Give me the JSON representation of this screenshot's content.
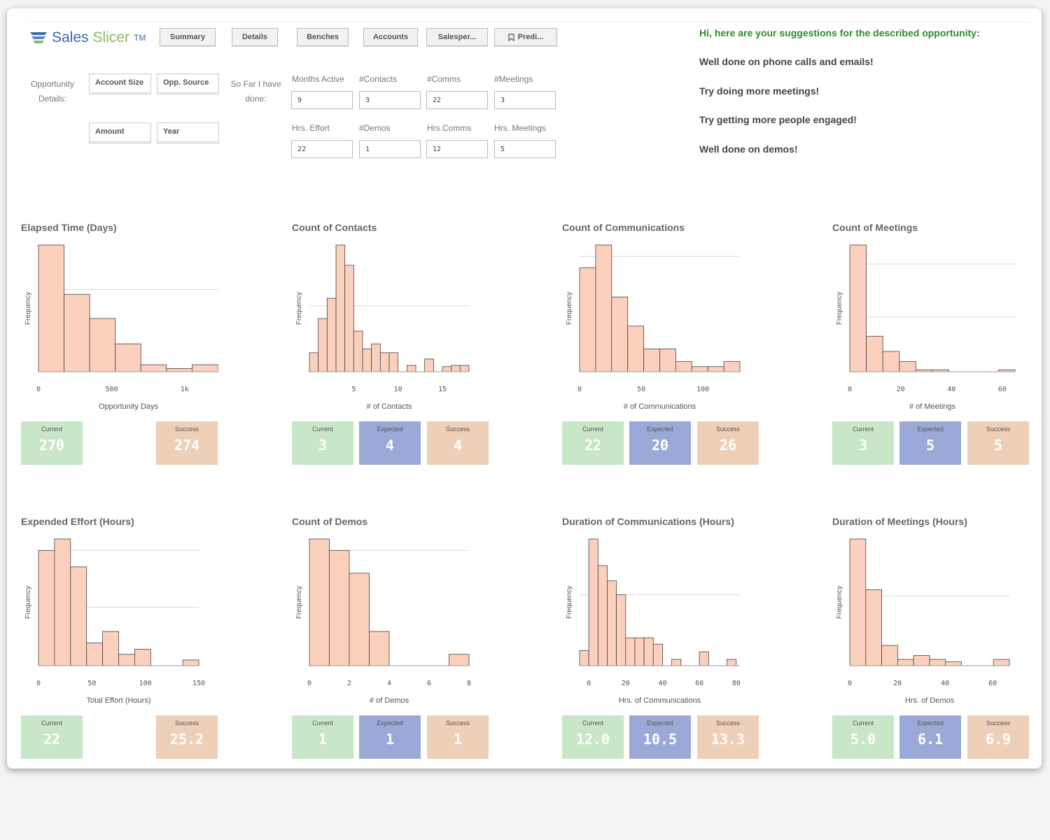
{
  "app": {
    "name_part1": "Sales",
    "name_part2": "Slicer",
    "tm": "TM"
  },
  "tabs": [
    "Summary",
    "Details",
    "Benches",
    "Accounts",
    "Salesper...",
    "Predi..."
  ],
  "opportunity": {
    "label_line1": "Opportunity",
    "label_line2": "Details:",
    "fields": [
      "Account Size",
      "Opp. Source",
      "Amount",
      "Year"
    ]
  },
  "done": {
    "label_line1": "So Far I have",
    "label_line2": "done:",
    "inputs": [
      {
        "label": "Months Active",
        "value": "9"
      },
      {
        "label": "#Contacts",
        "value": "3"
      },
      {
        "label": "#Comms",
        "value": "22"
      },
      {
        "label": "#Meetings",
        "value": "3"
      },
      {
        "label": "Hrs. Effort",
        "value": "22"
      },
      {
        "label": "#Demos",
        "value": "1"
      },
      {
        "label": "Hrs.Comms",
        "value": "12"
      },
      {
        "label": "Hrs. Meetings",
        "value": "5"
      }
    ]
  },
  "suggestions": {
    "title": "Hi, here are your suggestions for the described opportunity:",
    "items": [
      "Well done on phone calls and emails!",
      "Try doing more meetings!",
      "Try getting more people engaged!",
      "Well done on demos!"
    ]
  },
  "colors": {
    "bar": "#fbd1bd",
    "bar_stroke": "#444444",
    "current": "#c8e6c8",
    "expected": "#9ba9d8",
    "success": "#eecfb8"
  },
  "icons": {
    "logo": "stacked-layers-icon",
    "bookmark": "bookmark-icon"
  },
  "chart_data": [
    {
      "type": "bar",
      "title": "Elapsed Time (Days)",
      "ylabel": "Frequency",
      "xlabel": "Opportunity Days",
      "xlim": [
        0,
        1230
      ],
      "ylim": [
        0,
        1.0
      ],
      "xticks": [
        {
          "v": 0,
          "t": "0"
        },
        {
          "v": 500,
          "t": "500"
        },
        {
          "v": 1000,
          "t": "1k"
        }
      ],
      "grid": [
        0.65
      ],
      "bins": [
        [
          0,
          175,
          1.0
        ],
        [
          175,
          350,
          0.61
        ],
        [
          350,
          525,
          0.42
        ],
        [
          525,
          700,
          0.22
        ],
        [
          700,
          875,
          0.055
        ],
        [
          875,
          1050,
          0.025
        ],
        [
          1050,
          1230,
          0.055
        ]
      ],
      "kpis": [
        {
          "kind": "Current",
          "value": "270"
        },
        {
          "kind": "Success",
          "value": "274"
        }
      ]
    },
    {
      "type": "bar",
      "title": "Count of Contacts",
      "ylabel": "Frequency",
      "xlabel": "# of Contacts",
      "xlim": [
        0,
        18
      ],
      "ylim": [
        0,
        1.0
      ],
      "xticks": [
        {
          "v": 5,
          "t": "5"
        },
        {
          "v": 10,
          "t": "10"
        },
        {
          "v": 15,
          "t": "15"
        }
      ],
      "grid": [
        0.52
      ],
      "bins": [
        [
          0,
          1,
          0.15
        ],
        [
          1,
          2,
          0.42
        ],
        [
          2,
          3,
          0.58
        ],
        [
          3,
          4,
          1.0
        ],
        [
          4,
          5,
          0.84
        ],
        [
          5,
          6,
          0.32
        ],
        [
          6,
          7,
          0.18
        ],
        [
          7,
          8,
          0.22
        ],
        [
          8,
          9,
          0.15
        ],
        [
          9,
          10,
          0.15
        ],
        [
          11,
          12,
          0.05
        ],
        [
          13,
          14,
          0.1
        ],
        [
          15,
          16,
          0.04
        ],
        [
          16,
          17,
          0.05
        ],
        [
          17,
          18,
          0.05
        ]
      ],
      "kpis": [
        {
          "kind": "Current",
          "value": "3"
        },
        {
          "kind": "Expected",
          "value": "4"
        },
        {
          "kind": "Success",
          "value": "4"
        }
      ]
    },
    {
      "type": "bar",
      "title": "Count of Communications",
      "ylabel": "Frequency",
      "xlabel": "# of Communications",
      "xlim": [
        0,
        130
      ],
      "ylim": [
        0,
        1.0
      ],
      "xticks": [
        {
          "v": 0,
          "t": "0"
        },
        {
          "v": 50,
          "t": "50"
        },
        {
          "v": 100,
          "t": "100"
        }
      ],
      "grid": [
        0.91
      ],
      "bins": [
        [
          0,
          13,
          0.82
        ],
        [
          13,
          26,
          1.0
        ],
        [
          26,
          39,
          0.59
        ],
        [
          39,
          52,
          0.36
        ],
        [
          52,
          65,
          0.18
        ],
        [
          65,
          78,
          0.18
        ],
        [
          78,
          91,
          0.08
        ],
        [
          91,
          104,
          0.04
        ],
        [
          104,
          117,
          0.04
        ],
        [
          117,
          130,
          0.08
        ]
      ],
      "kpis": [
        {
          "kind": "Current",
          "value": "22"
        },
        {
          "kind": "Expected",
          "value": "20"
        },
        {
          "kind": "Success",
          "value": "26"
        }
      ]
    },
    {
      "type": "bar",
      "title": "Count of Meetings",
      "ylabel": "Frequency",
      "xlabel": "# of Meetings",
      "xlim": [
        0,
        65
      ],
      "ylim": [
        0,
        1.0
      ],
      "xticks": [
        {
          "v": 0,
          "t": "0"
        },
        {
          "v": 20,
          "t": "20"
        },
        {
          "v": 40,
          "t": "40"
        },
        {
          "v": 60,
          "t": "60"
        }
      ],
      "grid": [
        0.85,
        0.43
      ],
      "bins": [
        [
          0,
          6.5,
          1.0
        ],
        [
          6.5,
          13,
          0.28
        ],
        [
          13,
          19.5,
          0.16
        ],
        [
          19.5,
          26,
          0.08
        ],
        [
          26,
          32.5,
          0.015
        ],
        [
          32.5,
          39,
          0.015
        ],
        [
          58.5,
          65,
          0.015
        ]
      ],
      "kpis": [
        {
          "kind": "Current",
          "value": "3"
        },
        {
          "kind": "Expected",
          "value": "5"
        },
        {
          "kind": "Success",
          "value": "5"
        }
      ]
    },
    {
      "type": "bar",
      "title": "Expended Effort (Hours)",
      "ylabel": "Frequency",
      "xlabel": "Total Effort (Hours)",
      "xlim": [
        0,
        150
      ],
      "ylim": [
        0,
        1.0
      ],
      "xticks": [
        {
          "v": 0,
          "t": "0"
        },
        {
          "v": 50,
          "t": "50"
        },
        {
          "v": 100,
          "t": "100"
        },
        {
          "v": 150,
          "t": "150"
        }
      ],
      "grid": [
        0.91,
        0.46
      ],
      "bins": [
        [
          0,
          15,
          0.91
        ],
        [
          15,
          30,
          1.0
        ],
        [
          30,
          45,
          0.78
        ],
        [
          45,
          60,
          0.18
        ],
        [
          60,
          75,
          0.27
        ],
        [
          75,
          90,
          0.09
        ],
        [
          90,
          105,
          0.13
        ],
        [
          135,
          150,
          0.045
        ]
      ],
      "kpis": [
        {
          "kind": "Current",
          "value": "22"
        },
        {
          "kind": "Success",
          "value": "25.2"
        }
      ]
    },
    {
      "type": "bar",
      "title": "Count of Demos",
      "ylabel": "Frequency",
      "xlabel": "# of Demos",
      "xlim": [
        0,
        8
      ],
      "ylim": [
        0,
        1.0
      ],
      "xticks": [
        {
          "v": 0,
          "t": "0"
        },
        {
          "v": 2,
          "t": "2"
        },
        {
          "v": 4,
          "t": "4"
        },
        {
          "v": 6,
          "t": "6"
        },
        {
          "v": 8,
          "t": "8"
        }
      ],
      "grid": [
        0.91
      ],
      "bins": [
        [
          0,
          1,
          1.0
        ],
        [
          1,
          2,
          0.91
        ],
        [
          2,
          3,
          0.73
        ],
        [
          3,
          4,
          0.27
        ],
        [
          7,
          8,
          0.09
        ]
      ],
      "kpis": [
        {
          "kind": "Current",
          "value": "1"
        },
        {
          "kind": "Expected",
          "value": "1"
        },
        {
          "kind": "Success",
          "value": "1"
        }
      ]
    },
    {
      "type": "bar",
      "title": "Duration of Communications (Hours)",
      "ylabel": "Frequency",
      "xlabel": "Hrs. of Communications",
      "xlim": [
        -5,
        82
      ],
      "ylim": [
        0,
        1.0
      ],
      "xticks": [
        {
          "v": 0,
          "t": "0"
        },
        {
          "v": 20,
          "t": "20"
        },
        {
          "v": 40,
          "t": "40"
        },
        {
          "v": 60,
          "t": "60"
        },
        {
          "v": 80,
          "t": "80"
        }
      ],
      "grid": [
        0.56
      ],
      "bins": [
        [
          -5,
          0,
          0.12
        ],
        [
          0,
          5,
          1.0
        ],
        [
          5,
          10,
          0.79
        ],
        [
          10,
          15,
          0.67
        ],
        [
          15,
          20,
          0.56
        ],
        [
          20,
          25,
          0.22
        ],
        [
          25,
          30,
          0.22
        ],
        [
          30,
          35,
          0.22
        ],
        [
          35,
          40,
          0.17
        ],
        [
          45,
          50,
          0.05
        ],
        [
          60,
          65,
          0.11
        ],
        [
          75,
          80,
          0.05
        ]
      ],
      "kpis": [
        {
          "kind": "Current",
          "value": "12.0"
        },
        {
          "kind": "Expected",
          "value": "10.5"
        },
        {
          "kind": "Success",
          "value": "13.3"
        }
      ]
    },
    {
      "type": "bar",
      "title": "Duration of Meetings (Hours)",
      "ylabel": "Frequency",
      "xlabel": "Hrs. of Demos",
      "xlim": [
        0,
        67
      ],
      "ylim": [
        0,
        1.0
      ],
      "xticks": [
        {
          "v": 0,
          "t": "0"
        },
        {
          "v": 20,
          "t": "20"
        },
        {
          "v": 40,
          "t": "40"
        },
        {
          "v": 60,
          "t": "60"
        }
      ],
      "grid": [
        0.55
      ],
      "bins": [
        [
          0,
          6.7,
          1.0
        ],
        [
          6.7,
          13.4,
          0.6
        ],
        [
          13.4,
          20.1,
          0.16
        ],
        [
          20.1,
          26.8,
          0.05
        ],
        [
          26.8,
          33.5,
          0.08
        ],
        [
          33.5,
          40.2,
          0.05
        ],
        [
          40.2,
          46.9,
          0.03
        ],
        [
          60.3,
          67,
          0.05
        ]
      ],
      "kpis": [
        {
          "kind": "Current",
          "value": "5.0"
        },
        {
          "kind": "Expected",
          "value": "6.1"
        },
        {
          "kind": "Success",
          "value": "6.9"
        }
      ]
    }
  ]
}
